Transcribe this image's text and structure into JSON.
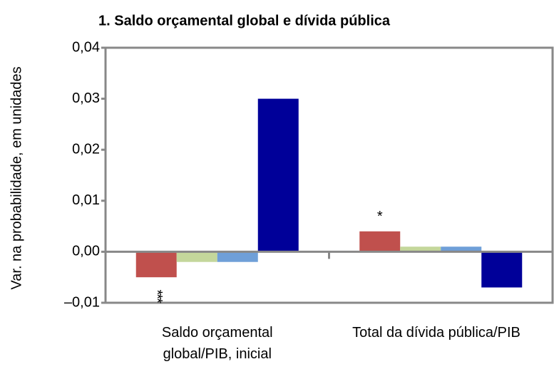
{
  "chart_data": {
    "type": "bar",
    "title": "1. Saldo orçamental global e dívida pública",
    "ylabel": "Var. na probabilidade, em unidades",
    "categories": [
      "Saldo orçamental global/PIB, inicial",
      "Total da dívida pública/PIB"
    ],
    "series": [
      {
        "color": "#c0504d",
        "values": [
          -0.005,
          0.004
        ]
      },
      {
        "color": "#c4d79b",
        "values": [
          -0.002,
          0.001
        ]
      },
      {
        "color": "#6f9fd8",
        "values": [
          -0.002,
          0.001
        ]
      },
      {
        "color": "#000099",
        "values": [
          0.03,
          -0.007
        ]
      }
    ],
    "annotations": [
      "***",
      "*"
    ],
    "ylim": [
      -0.01,
      0.04
    ],
    "yticks": [
      {
        "value": -0.01,
        "label": "–0,01"
      },
      {
        "value": 0,
        "label": "0,00"
      },
      {
        "value": 0.01,
        "label": "0,01"
      },
      {
        "value": 0.02,
        "label": "0,02"
      },
      {
        "value": 0.03,
        "label": "0,03"
      },
      {
        "value": 0.04,
        "label": "0,04"
      }
    ],
    "grid": false
  }
}
